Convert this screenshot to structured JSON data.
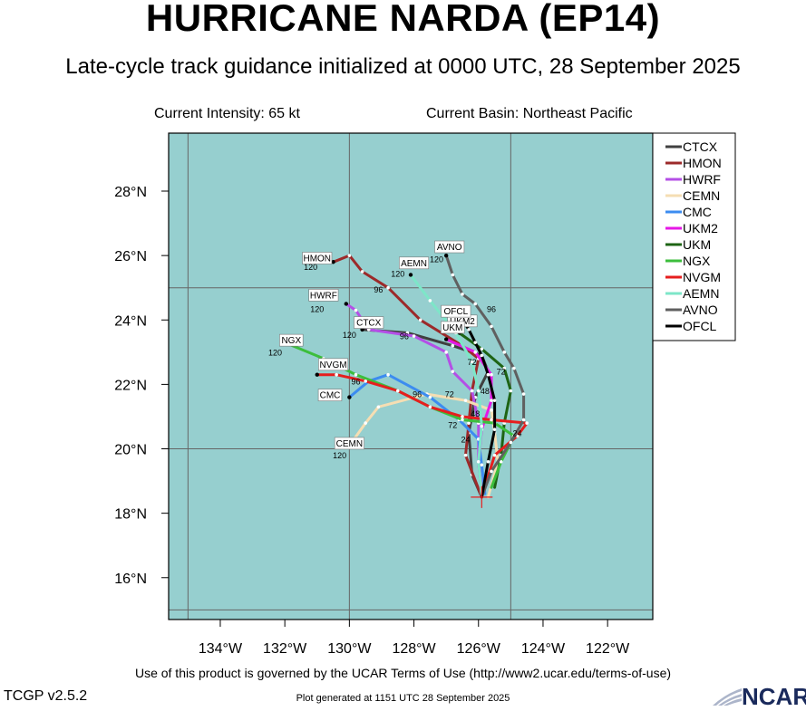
{
  "header": {
    "title": "HURRICANE NARDA (EP14)",
    "subtitle": "Late-cycle track guidance initialized at 0000 UTC, 28 September 2025",
    "intensity": "Current Intensity: 65 kt",
    "basin": "Current Basin: Northeast Pacific"
  },
  "footer": {
    "terms": "Use of this product is governed by the UCAR Terms of Use (http://www2.ucar.edu/terms-of-use)",
    "version": "TCGP v2.5.2",
    "generated": "Plot generated at 1151 UTC   28 September 2025",
    "logo_text": "NCAR"
  },
  "chart_data": {
    "type": "map-track",
    "title": "HURRICANE NARDA (EP14)",
    "xlim": [
      -135.6,
      -120.6
    ],
    "ylim": [
      14.7,
      29.8
    ],
    "x_ticks": [
      -134,
      -132,
      -130,
      -128,
      -126,
      -124,
      -122
    ],
    "x_tick_labels": [
      "134°W",
      "132°W",
      "130°W",
      "128°W",
      "126°W",
      "124°W",
      "122°W"
    ],
    "y_ticks": [
      16,
      18,
      20,
      22,
      24,
      26,
      28
    ],
    "y_tick_labels": [
      "16°N",
      "18°N",
      "20°N",
      "22°N",
      "24°N",
      "26°N",
      "28°N"
    ],
    "grid_lons": [
      -135,
      -130,
      -125
    ],
    "grid_lats": [
      15,
      20,
      25
    ],
    "colors": {
      "ocean": "#96cfcf",
      "grid": "#666666"
    },
    "legend_position": "top-right outside plot",
    "initial_position": {
      "lon": -125.9,
      "lat": 18.5
    },
    "series": [
      {
        "name": "CTCX",
        "color": "#404040",
        "lon": [
          -125.9,
          -126.2,
          -126.3,
          -126.1,
          -125.7,
          -125.9,
          -126.8,
          -128.2,
          -129.6
        ],
        "lat": [
          18.5,
          19.2,
          20.5,
          21.6,
          22.4,
          22.9,
          23.2,
          23.6,
          23.7
        ],
        "hour_labels": [
          {
            "text": "72",
            "lon": -126.2,
            "lat": 22.6
          },
          {
            "text": "96",
            "lon": -128.3,
            "lat": 23.4
          },
          {
            "text": "120",
            "lon": -130.0,
            "lat": 23.45
          }
        ],
        "end_label": {
          "text": "CTCX",
          "lon": -129.4,
          "lat": 23.85
        }
      },
      {
        "name": "HMON",
        "color": "#9c2a2a",
        "lon": [
          -125.9,
          -126.4,
          -126.3,
          -126.2,
          -126.0,
          -126.5,
          -127.8,
          -128.8,
          -129.6,
          -130.0,
          -130.5
        ],
        "lat": [
          18.5,
          19.8,
          20.8,
          21.8,
          22.8,
          23.2,
          24.0,
          25.0,
          25.5,
          26.0,
          25.8
        ],
        "hour_labels": [
          {
            "text": "96",
            "lon": -129.1,
            "lat": 24.85
          },
          {
            "text": "120",
            "lon": -131.2,
            "lat": 25.55
          }
        ],
        "end_label": {
          "text": "HMON",
          "lon": -131.0,
          "lat": 25.85
        }
      },
      {
        "name": "HWRF",
        "color": "#b44fe6",
        "lon": [
          -125.9,
          -126.0,
          -126.0,
          -126.2,
          -126.8,
          -127.0,
          -128.0,
          -129.4,
          -129.8,
          -130.1
        ],
        "lat": [
          18.5,
          19.6,
          20.8,
          21.8,
          22.4,
          23.0,
          23.5,
          23.7,
          24.3,
          24.5
        ],
        "hour_labels": [
          {
            "text": "72",
            "lon": -126.9,
            "lat": 21.6
          },
          {
            "text": "120",
            "lon": -131.0,
            "lat": 24.25
          }
        ],
        "end_label": {
          "text": "HWRF",
          "lon": -130.8,
          "lat": 24.7
        }
      },
      {
        "name": "CEMN",
        "color": "#f5deb3",
        "lon": [
          -125.7,
          -125.4,
          -125.5,
          -125.6,
          -126.4,
          -127.6,
          -129.1,
          -129.5,
          -130.0
        ],
        "lat": [
          18.5,
          19.6,
          20.5,
          21.2,
          21.5,
          21.7,
          21.3,
          20.8,
          20.1
        ],
        "hour_labels": [
          {
            "text": "120",
            "lon": -130.3,
            "lat": 19.7
          }
        ],
        "end_label": {
          "text": "CEMN",
          "lon": -130.0,
          "lat": 20.1
        }
      },
      {
        "name": "CMC",
        "color": "#3c8cf0",
        "lon": [
          -125.8,
          -125.9,
          -126.0,
          -126.6,
          -127.5,
          -128.8,
          -129.4,
          -130.0
        ],
        "lat": [
          18.6,
          19.5,
          20.3,
          20.9,
          21.6,
          22.3,
          22.1,
          21.6
        ],
        "hour_labels": [
          {
            "text": "96",
            "lon": -127.9,
            "lat": 21.6
          }
        ],
        "end_label": {
          "text": "CMC",
          "lon": -130.6,
          "lat": 21.6
        }
      },
      {
        "name": "UKM2",
        "color": "#e617e6",
        "lon": [
          -125.9,
          -126.0,
          -125.9,
          -125.6,
          -125.6,
          -126.1,
          -127.0
        ],
        "lat": [
          18.6,
          19.6,
          20.6,
          21.5,
          22.3,
          23.0,
          23.4
        ],
        "hour_labels": [
          {
            "text": "48",
            "lon": -125.8,
            "lat": 21.7
          }
        ],
        "end_label": {
          "text": "UKM2",
          "lon": -126.5,
          "lat": 23.9
        }
      },
      {
        "name": "UKM",
        "color": "#1e6414",
        "lon": [
          -125.5,
          -125.3,
          -125.2,
          -125.0,
          -125.2,
          -125.9,
          -126.6
        ],
        "lat": [
          18.8,
          19.8,
          20.8,
          21.8,
          22.5,
          23.1,
          23.6
        ],
        "hour_labels": [
          {
            "text": "72",
            "lon": -125.3,
            "lat": 22.3
          }
        ],
        "end_label": {
          "text": "UKM",
          "lon": -126.8,
          "lat": 23.7
        }
      },
      {
        "name": "NGX",
        "color": "#3cbe3c",
        "lon": [
          -125.6,
          -125.3,
          -124.9,
          -125.5,
          -126.5,
          -127.5,
          -128.5,
          -129.8,
          -130.8,
          -132.0
        ],
        "lat": [
          18.8,
          19.6,
          20.4,
          20.8,
          20.9,
          21.3,
          21.8,
          22.3,
          22.8,
          23.3
        ],
        "hour_labels": [
          {
            "text": "72",
            "lon": -126.8,
            "lat": 20.65
          },
          {
            "text": "120",
            "lon": -132.3,
            "lat": 22.9
          }
        ],
        "end_label": {
          "text": "NGX",
          "lon": -131.8,
          "lat": 23.3
        }
      },
      {
        "name": "NVGM",
        "color": "#e61e1e",
        "lon": [
          -125.9,
          -125.5,
          -124.8,
          -124.5,
          -125.6,
          -126.5,
          -127.5,
          -128.5,
          -129.5,
          -130.4,
          -131.0
        ],
        "lat": [
          18.5,
          19.8,
          20.4,
          20.8,
          20.9,
          21.0,
          21.3,
          21.8,
          22.1,
          22.3,
          22.3
        ],
        "hour_labels": [
          {
            "text": "24",
            "lon": -124.8,
            "lat": 20.4
          },
          {
            "text": "96",
            "lon": -129.8,
            "lat": 22.0
          }
        ],
        "end_label": {
          "text": "NVGM",
          "lon": -130.5,
          "lat": 22.55
        }
      },
      {
        "name": "AEMN",
        "color": "#7de6c8",
        "lon": [
          -125.9,
          -126.0,
          -125.9,
          -126.0,
          -126.2,
          -126.7,
          -127.5,
          -128.1
        ],
        "lat": [
          18.5,
          19.6,
          20.7,
          21.8,
          22.7,
          23.6,
          24.6,
          25.4
        ],
        "hour_labels": [
          {
            "text": "120",
            "lon": -128.5,
            "lat": 25.35
          }
        ],
        "end_label": {
          "text": "AEMN",
          "lon": -128.0,
          "lat": 25.7
        }
      },
      {
        "name": "AVNO",
        "color": "#606060",
        "lon": [
          -125.9,
          -125.6,
          -125.0,
          -124.6,
          -124.6,
          -124.9,
          -125.2,
          -125.6,
          -126.1,
          -126.5,
          -126.8,
          -127.0
        ],
        "lat": [
          18.5,
          19.3,
          20.2,
          20.9,
          21.7,
          22.5,
          23.0,
          23.8,
          24.5,
          24.8,
          25.4,
          26.0
        ],
        "hour_labels": [
          {
            "text": "96",
            "lon": -125.6,
            "lat": 24.25
          },
          {
            "text": "120",
            "lon": -127.3,
            "lat": 25.8
          }
        ],
        "end_label": {
          "text": "AVNO",
          "lon": -126.9,
          "lat": 26.2
        }
      },
      {
        "name": "OFCL",
        "color": "#000000",
        "lon": [
          -125.9,
          -125.7,
          -125.5,
          -125.5,
          -125.7,
          -125.9,
          -126.1,
          -126.3,
          -126.5
        ],
        "lat": [
          18.5,
          19.6,
          20.6,
          21.5,
          22.3,
          22.9,
          23.3,
          23.7,
          24.0
        ],
        "hour_labels": [
          {
            "text": "24",
            "lon": -126.4,
            "lat": 20.2
          },
          {
            "text": "48",
            "lon": -126.1,
            "lat": 21.0
          }
        ],
        "end_label": {
          "text": "OFCL",
          "lon": -126.7,
          "lat": 24.2
        }
      }
    ]
  }
}
